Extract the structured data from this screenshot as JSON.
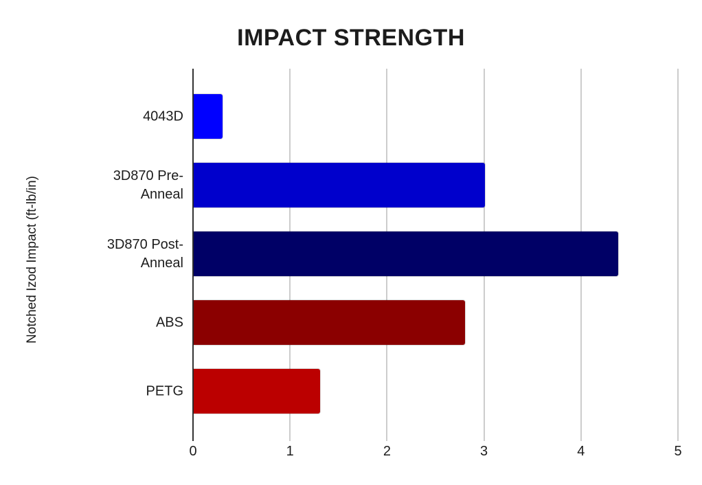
{
  "figure": {
    "background": "#ffffff",
    "text_color": "#1c1c1c",
    "grid_color": "#cccccc",
    "axis_color": "#333333"
  },
  "chart_data": {
    "type": "bar",
    "orientation": "horizontal",
    "title": "IMPACT STRENGTH",
    "xlabel": "",
    "ylabel": "Notched Izod Impact (ft-lb/in)",
    "categories": [
      "4043D",
      "3D870 Pre-Anneal",
      "3D870 Post-Anneal",
      "ABS",
      "PETG"
    ],
    "values": [
      0.3,
      3.0,
      4.38,
      2.8,
      1.3
    ],
    "bar_colors": [
      "#0000FF",
      "#0000CC",
      "#000066",
      "#8B0000",
      "#BB0000"
    ],
    "xlim": [
      0,
      5
    ],
    "xticks": [
      0,
      1,
      2,
      3,
      4,
      5
    ],
    "grid": true,
    "legend": false
  }
}
